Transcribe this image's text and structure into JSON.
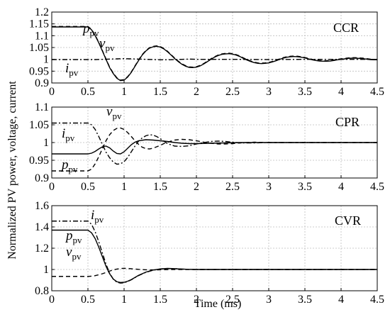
{
  "ylabel": "Normalized PV power, voltage, current",
  "xlabel": "Time (ms)",
  "chart_data": [
    {
      "type": "line",
      "panel_label": "CCR",
      "xlim": [
        0,
        4.5
      ],
      "ylim": [
        0.9,
        1.2
      ],
      "xticks": [
        "0",
        "0.5",
        "1",
        "1.5",
        "2",
        "2.5",
        "3",
        "3.5",
        "4",
        "4.5"
      ],
      "yticks": [
        "0.9",
        "0.95",
        "1",
        "1.05",
        "1.1",
        "1.15",
        "1.2"
      ],
      "grid": true,
      "annotations": [
        {
          "base": "p",
          "sub": "pv"
        },
        {
          "base": "v",
          "sub": "pv"
        },
        {
          "base": "i",
          "sub": "pv"
        }
      ],
      "series": [
        {
          "style": "solid",
          "x": [
            0,
            0.5,
            0.55,
            0.6,
            0.65,
            0.7,
            0.75,
            0.8,
            0.85,
            0.9,
            0.95,
            1.0,
            1.05,
            1.1,
            1.15,
            1.2,
            1.25,
            1.3,
            1.35,
            1.4,
            1.45,
            1.5,
            1.55,
            1.6,
            1.65,
            1.7,
            1.75,
            1.8,
            1.85,
            1.9,
            1.95,
            2.0,
            2.05,
            2.1,
            2.15,
            2.2,
            2.25,
            2.3,
            2.35,
            2.4,
            2.45,
            2.5,
            2.55,
            2.6,
            2.65,
            2.7,
            2.75,
            2.8,
            2.85,
            2.9,
            2.95,
            3.0,
            3.05,
            3.1,
            3.15,
            3.2,
            3.25,
            3.3,
            3.35,
            3.4,
            3.45,
            3.5,
            3.55,
            3.6,
            3.65,
            3.7,
            3.75,
            3.8,
            3.85,
            3.9,
            3.95,
            4.0,
            4.05,
            4.1,
            4.15,
            4.2,
            4.25,
            4.3,
            4.35,
            4.4,
            4.45,
            4.5
          ],
          "y": [
            1.137,
            1.137,
            1.125,
            1.1,
            1.07,
            1.035,
            1.0,
            0.965,
            0.94,
            0.92,
            0.91,
            0.912,
            0.925,
            0.945,
            0.97,
            0.995,
            1.018,
            1.035,
            1.047,
            1.053,
            1.055,
            1.052,
            1.044,
            1.032,
            1.018,
            1.003,
            0.99,
            0.979,
            0.971,
            0.966,
            0.965,
            0.967,
            0.972,
            0.98,
            0.99,
            1.0,
            1.009,
            1.016,
            1.021,
            1.023,
            1.024,
            1.022,
            1.018,
            1.012,
            1.004,
            0.997,
            0.991,
            0.986,
            0.983,
            0.982,
            0.983,
            0.985,
            0.989,
            0.994,
            1.0,
            1.005,
            1.009,
            1.011,
            1.012,
            1.011,
            1.009,
            1.006,
            1.002,
            0.998,
            0.995,
            0.993,
            0.992,
            0.992,
            0.993,
            0.995,
            0.998,
            1.0,
            1.002,
            1.004,
            1.005,
            1.005,
            1.004,
            1.003,
            1.001,
            0.999,
            0.998,
            0.998
          ]
        },
        {
          "style": "dashed",
          "x": [
            0,
            0.5,
            0.55,
            0.6,
            0.65,
            0.7,
            0.75,
            0.8,
            0.85,
            0.9,
            0.95,
            1.0,
            1.05,
            1.1,
            1.15,
            1.2,
            1.25,
            1.3,
            1.35,
            1.4,
            1.45,
            1.5,
            1.55,
            1.6,
            1.65,
            1.7,
            1.75,
            1.8,
            1.85,
            1.9,
            1.95,
            2.0,
            2.05,
            2.1,
            2.15,
            2.2,
            2.25,
            2.3,
            2.35,
            2.4,
            2.45,
            2.5,
            2.55,
            2.6,
            2.65,
            2.7,
            2.75,
            2.8,
            2.85,
            2.9,
            2.95,
            3.0,
            3.05,
            3.1,
            3.15,
            3.2,
            3.25,
            3.3,
            3.35,
            3.4,
            3.45,
            3.5,
            3.55,
            3.6,
            3.65,
            3.7,
            3.75,
            3.8,
            3.85,
            3.9,
            3.95,
            4.0,
            4.05,
            4.1,
            4.15,
            4.2,
            4.25,
            4.3,
            4.35,
            4.4,
            4.45,
            4.5
          ],
          "y": [
            1.139,
            1.139,
            1.127,
            1.102,
            1.072,
            1.037,
            1.002,
            0.967,
            0.942,
            0.922,
            0.912,
            0.914,
            0.927,
            0.947,
            0.972,
            0.997,
            1.02,
            1.037,
            1.049,
            1.055,
            1.057,
            1.054,
            1.046,
            1.034,
            1.02,
            1.005,
            0.992,
            0.981,
            0.973,
            0.968,
            0.967,
            0.969,
            0.974,
            0.982,
            0.992,
            1.002,
            1.011,
            1.018,
            1.023,
            1.025,
            1.026,
            1.024,
            1.02,
            1.014,
            1.006,
            0.999,
            0.993,
            0.988,
            0.985,
            0.984,
            0.985,
            0.987,
            0.991,
            0.996,
            1.002,
            1.007,
            1.011,
            1.013,
            1.014,
            1.013,
            1.011,
            1.008,
            1.004,
            1.0,
            0.997,
            0.995,
            0.994,
            0.994,
            0.995,
            0.997,
            1.0,
            1.002,
            1.004,
            1.006,
            1.007,
            1.007,
            1.006,
            1.005,
            1.003,
            1.001,
            1.0,
            1.0
          ]
        },
        {
          "style": "dashdot",
          "x": [
            0,
            0.5,
            0.6,
            0.7,
            0.8,
            0.9,
            1.0,
            1.1,
            1.2,
            1.3,
            1.4,
            1.5,
            1.6,
            1.7,
            1.8,
            1.9,
            2.0,
            2.5,
            3.0,
            3.5,
            4.0,
            4.5
          ],
          "y": [
            0.999,
            0.999,
            0.999,
            1.0,
            1.001,
            1.002,
            1.003,
            1.002,
            1.001,
            1.0,
            0.999,
            0.998,
            0.998,
            0.999,
            1.0,
            1.001,
            1.0,
            1.0,
            0.999,
            1.0,
            1.0,
            1.0
          ]
        }
      ]
    },
    {
      "type": "line",
      "panel_label": "CPR",
      "xlim": [
        0,
        4.5
      ],
      "ylim": [
        0.9,
        1.1
      ],
      "xticks": [
        "0",
        "0.5",
        "1",
        "1.5",
        "2",
        "2.5",
        "3",
        "3.5",
        "4",
        "4.5"
      ],
      "yticks": [
        "0.9",
        "0.95",
        "1",
        "1.05",
        "1.1"
      ],
      "grid": true,
      "annotations": [
        {
          "base": "v",
          "sub": "pv"
        },
        {
          "base": "i",
          "sub": "pv"
        },
        {
          "base": "p",
          "sub": "pv"
        }
      ],
      "series": [
        {
          "style": "solid",
          "x": [
            0,
            0.5,
            0.55,
            0.6,
            0.65,
            0.7,
            0.75,
            0.8,
            0.85,
            0.9,
            0.95,
            1.0,
            1.05,
            1.1,
            1.15,
            1.2,
            1.3,
            1.4,
            1.5,
            1.6,
            1.7,
            1.8,
            1.9,
            2.0,
            2.2,
            2.4,
            2.6,
            2.8,
            3.0,
            3.5,
            4.0,
            4.5
          ],
          "y": [
            0.968,
            0.968,
            0.97,
            0.975,
            0.982,
            0.988,
            0.99,
            0.985,
            0.976,
            0.969,
            0.968,
            0.974,
            0.984,
            0.994,
            1.001,
            1.005,
            1.008,
            1.007,
            1.005,
            1.003,
            1.0,
            0.998,
            0.997,
            0.997,
            0.998,
            0.999,
            1.0,
            1.0,
            1.0,
            1.0,
            1.0,
            1.0
          ]
        },
        {
          "style": "dashed",
          "x": [
            0,
            0.5,
            0.55,
            0.6,
            0.65,
            0.7,
            0.75,
            0.8,
            0.85,
            0.9,
            0.95,
            1.0,
            1.05,
            1.1,
            1.15,
            1.2,
            1.25,
            1.3,
            1.35,
            1.4,
            1.45,
            1.5,
            1.55,
            1.6,
            1.7,
            1.8,
            1.9,
            2.0,
            2.1,
            2.2,
            2.3,
            2.4,
            2.5,
            2.6,
            2.8,
            3.0,
            3.5,
            4.0,
            4.5
          ],
          "y": [
            0.92,
            0.92,
            0.925,
            0.94,
            0.96,
            0.983,
            1.005,
            1.022,
            1.034,
            1.04,
            1.041,
            1.037,
            1.028,
            1.017,
            1.005,
            0.995,
            0.987,
            0.983,
            0.982,
            0.984,
            0.988,
            0.992,
            0.997,
            1.001,
            1.007,
            1.009,
            1.008,
            1.005,
            1.001,
            0.998,
            0.996,
            0.996,
            0.997,
            0.999,
            1.001,
            1.0,
            1.0,
            1.0,
            1.0
          ]
        },
        {
          "style": "dashdot",
          "x": [
            0,
            0.5,
            0.55,
            0.6,
            0.65,
            0.7,
            0.75,
            0.8,
            0.85,
            0.9,
            0.95,
            1.0,
            1.05,
            1.1,
            1.15,
            1.2,
            1.25,
            1.3,
            1.35,
            1.4,
            1.45,
            1.5,
            1.55,
            1.6,
            1.7,
            1.8,
            1.9,
            2.0,
            2.1,
            2.2,
            2.3,
            2.4,
            2.5,
            2.6,
            2.8,
            3.0,
            3.5,
            4.0,
            4.5
          ],
          "y": [
            1.055,
            1.055,
            1.05,
            1.037,
            1.017,
            0.995,
            0.973,
            0.957,
            0.945,
            0.939,
            0.94,
            0.946,
            0.958,
            0.974,
            0.99,
            1.004,
            1.013,
            1.019,
            1.022,
            1.021,
            1.017,
            1.011,
            1.004,
            0.997,
            0.99,
            0.989,
            0.991,
            0.996,
            1.0,
            1.003,
            1.004,
            1.003,
            1.001,
            0.999,
            0.999,
            1.0,
            1.0,
            1.0,
            1.0
          ]
        }
      ]
    },
    {
      "type": "line",
      "panel_label": "CVR",
      "xlim": [
        0,
        4.5
      ],
      "ylim": [
        0.8,
        1.6
      ],
      "xticks": [
        "0",
        "0.5",
        "1",
        "1.5",
        "2",
        "2.5",
        "3",
        "3.5",
        "4",
        "4.5"
      ],
      "yticks": [
        "0.8",
        "1",
        "1.2",
        "1.4",
        "1.6"
      ],
      "grid": true,
      "annotations": [
        {
          "base": "i",
          "sub": "pv"
        },
        {
          "base": "p",
          "sub": "pv"
        },
        {
          "base": "v",
          "sub": "pv"
        }
      ],
      "series": [
        {
          "style": "solid",
          "x": [
            0,
            0.5,
            0.55,
            0.6,
            0.65,
            0.7,
            0.75,
            0.8,
            0.85,
            0.9,
            0.95,
            1.0,
            1.05,
            1.1,
            1.15,
            1.2,
            1.3,
            1.4,
            1.5,
            1.6,
            1.7,
            1.8,
            1.9,
            2.0,
            2.5,
            3.0,
            3.5,
            4.0,
            4.5
          ],
          "y": [
            1.37,
            1.37,
            1.345,
            1.29,
            1.21,
            1.12,
            1.03,
            0.96,
            0.91,
            0.885,
            0.878,
            0.88,
            0.89,
            0.905,
            0.925,
            0.945,
            0.975,
            0.995,
            1.005,
            1.01,
            1.008,
            1.004,
            1.001,
            1.0,
            1.0,
            1.0,
            1.0,
            1.0,
            1.0
          ]
        },
        {
          "style": "dashed",
          "x": [
            0,
            0.5,
            0.55,
            0.6,
            0.65,
            0.7,
            0.75,
            0.8,
            0.85,
            0.9,
            0.95,
            1.0,
            1.05,
            1.1,
            1.2,
            1.3,
            1.4,
            1.5,
            1.6,
            1.7,
            1.8,
            2.0,
            2.5,
            3.0,
            3.5,
            4.0,
            4.5
          ],
          "y": [
            0.935,
            0.935,
            0.937,
            0.942,
            0.95,
            0.96,
            0.972,
            0.985,
            0.996,
            1.004,
            1.009,
            1.011,
            1.01,
            1.007,
            1.001,
            0.997,
            0.996,
            0.997,
            0.999,
            1.0,
            1.0,
            1.0,
            1.0,
            1.0,
            1.0,
            1.0,
            1.0
          ]
        },
        {
          "style": "dashdot",
          "x": [
            0,
            0.5,
            0.55,
            0.6,
            0.65,
            0.7,
            0.75,
            0.8,
            0.85,
            0.9,
            0.95,
            1.0,
            1.05,
            1.1,
            1.15,
            1.2,
            1.3,
            1.4,
            1.5,
            1.6,
            1.7,
            1.8,
            1.9,
            2.0,
            2.5,
            3.0,
            3.5,
            4.0,
            4.5
          ],
          "y": [
            1.455,
            1.455,
            1.425,
            1.355,
            1.26,
            1.155,
            1.05,
            0.965,
            0.91,
            0.88,
            0.872,
            0.875,
            0.887,
            0.903,
            0.923,
            0.943,
            0.973,
            0.993,
            1.004,
            1.009,
            1.008,
            1.004,
            1.001,
            1.0,
            1.0,
            1.0,
            1.0,
            1.0,
            1.0
          ]
        }
      ]
    }
  ]
}
